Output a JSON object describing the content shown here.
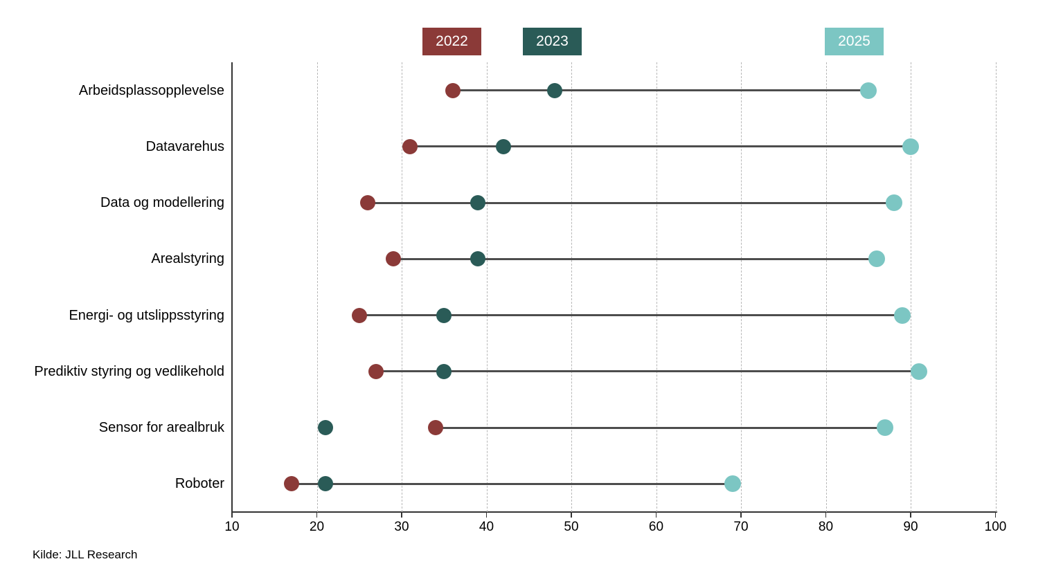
{
  "legend": {
    "items": [
      {
        "label": "2022",
        "color": "#8b3a38"
      },
      {
        "label": "2023",
        "color": "#2a5b57"
      },
      {
        "label": "2025",
        "color": "#7cc6c3"
      }
    ]
  },
  "source": "Kilde: JLL Research",
  "chart_data": {
    "type": "dumbbell",
    "title": "",
    "xlabel": "",
    "ylabel": "",
    "categories": [
      "Arbeidsplassopplevelse",
      "Datavarehus",
      "Data og modellering",
      "Arealstyring",
      "Energi- og utslippsstyring",
      "Prediktiv styring og vedlikehold",
      "Sensor for arealbruk",
      "Roboter"
    ],
    "series": [
      {
        "name": "2022",
        "color": "#8b3a38",
        "values": [
          36,
          31,
          26,
          29,
          25,
          27,
          34,
          17
        ]
      },
      {
        "name": "2023",
        "color": "#2a5b57",
        "values": [
          48,
          42,
          39,
          39,
          35,
          35,
          21,
          21
        ]
      },
      {
        "name": "2025",
        "color": "#7cc6c3",
        "values": [
          85,
          90,
          88,
          86,
          89,
          91,
          87,
          69
        ]
      }
    ],
    "connector": {
      "from": "2022",
      "to": "2025",
      "color": "#4d4d4d"
    },
    "xlim": [
      10,
      100
    ],
    "xticks": [
      10,
      20,
      30,
      40,
      50,
      60,
      70,
      80,
      90,
      100
    ],
    "grid": "vertical-dashed",
    "legend_position": "top"
  }
}
